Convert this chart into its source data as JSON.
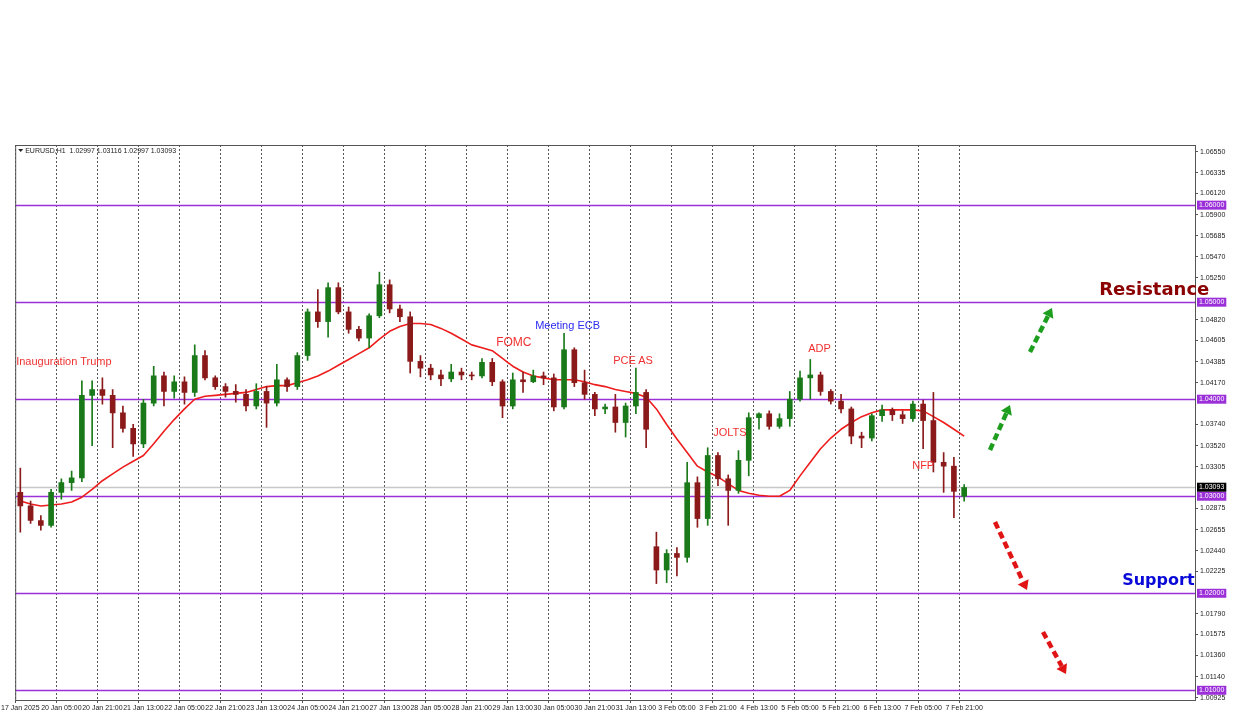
{
  "chart_data": {
    "type": "candlestick",
    "title": "EURUSD,H1  1.02997 1.03116 1.02997 1.03093",
    "categories": [
      "17 Jan 2025",
      null,
      null,
      null,
      "20 Jan 05:00",
      null,
      null,
      null,
      "20 Jan 21:00",
      null,
      null,
      null,
      "21 Jan 13:00",
      null,
      null,
      null,
      "22 Jan 05:00",
      null,
      null,
      null,
      "22 Jan 21:00",
      null,
      null,
      null,
      "23 Jan 13:00",
      null,
      null,
      null,
      "24 Jan 05:00",
      null,
      null,
      null,
      "24 Jan 21:00",
      null,
      null,
      null,
      "27 Jan 13:00",
      null,
      null,
      null,
      "28 Jan 05:00",
      null,
      null,
      null,
      "28 Jan 21:00",
      null,
      null,
      null,
      "29 Jan 13:00",
      null,
      null,
      null,
      "30 Jan 05:00",
      null,
      null,
      null,
      "30 Jan 21:00",
      null,
      null,
      null,
      "31 Jan 13:00",
      null,
      null,
      null,
      "3 Feb 05:00",
      null,
      null,
      null,
      "3 Feb 21:00",
      null,
      null,
      null,
      "4 Feb 13:00",
      null,
      null,
      null,
      "5 Feb 05:00",
      null,
      null,
      null,
      "5 Feb 21:00",
      null,
      null,
      null,
      "6 Feb 13:00",
      null,
      null,
      null,
      "7 Feb 05:00",
      null,
      null,
      null,
      "7 Feb 21:00",
      null,
      null,
      null,
      null,
      null,
      null,
      null,
      null,
      null,
      null,
      null,
      null,
      null,
      null,
      null,
      null,
      null,
      null,
      null,
      null,
      null,
      null
    ],
    "series": [
      {
        "ohlc": [
          [
            1.0304,
            1.0329,
            1.0263,
            1.029
          ],
          [
            1.029,
            1.0295,
            1.0272,
            1.0275
          ],
          [
            1.0275,
            1.028,
            1.0265,
            1.027
          ],
          [
            1.027,
            1.0307,
            1.0268,
            1.0304
          ],
          [
            1.0304,
            1.0318,
            1.0297,
            1.0314
          ],
          [
            1.0314,
            1.0326,
            1.0306,
            1.0319
          ],
          [
            1.0319,
            1.0419,
            1.0315,
            1.0404
          ],
          [
            1.0404,
            1.0419,
            1.0352,
            1.041
          ],
          [
            1.041,
            1.0422,
            1.0395,
            1.0404
          ],
          [
            1.0404,
            1.041,
            1.035,
            1.0386
          ],
          [
            1.0386,
            1.0393,
            1.0366,
            1.037
          ],
          [
            1.037,
            1.0374,
            1.0341,
            1.0354
          ],
          [
            1.0354,
            1.04,
            1.035,
            1.0396
          ],
          [
            1.0396,
            1.0434,
            1.0393,
            1.0424
          ],
          [
            1.0424,
            1.0428,
            1.0393,
            1.0408
          ],
          [
            1.0408,
            1.0424,
            1.0401,
            1.0418
          ],
          [
            1.0418,
            1.0423,
            1.0395,
            1.0407
          ],
          [
            1.0407,
            1.0456,
            1.0403,
            1.0445
          ],
          [
            1.0445,
            1.045,
            1.042,
            1.0422
          ],
          [
            1.0422,
            1.0424,
            1.041,
            1.0413
          ],
          [
            1.0413,
            1.0416,
            1.0402,
            1.0408
          ],
          [
            1.0408,
            1.0415,
            1.0397,
            1.0405
          ],
          [
            1.0405,
            1.041,
            1.0388,
            1.0393
          ],
          [
            1.0393,
            1.0416,
            1.039,
            1.0408
          ],
          [
            1.0408,
            1.0413,
            1.0371,
            1.0396
          ],
          [
            1.0396,
            1.0436,
            1.0393,
            1.042
          ],
          [
            1.042,
            1.0422,
            1.0408,
            1.0413
          ],
          [
            1.0413,
            1.0448,
            1.041,
            1.0445
          ],
          [
            1.0445,
            1.0493,
            1.044,
            1.049
          ],
          [
            1.049,
            1.0513,
            1.0474,
            1.048
          ],
          [
            1.048,
            1.052,
            1.0464,
            1.0515
          ],
          [
            1.0515,
            1.052,
            1.0488,
            1.049
          ],
          [
            1.049,
            1.0495,
            1.0468,
            1.0472
          ],
          [
            1.0472,
            1.0475,
            1.046,
            1.0463
          ],
          [
            1.0463,
            1.0488,
            1.0453,
            1.0486
          ],
          [
            1.0486,
            1.0531,
            1.0484,
            1.0518
          ],
          [
            1.0518,
            1.0523,
            1.0489,
            1.0493
          ],
          [
            1.0493,
            1.0497,
            1.048,
            1.0485
          ],
          [
            1.0485,
            1.049,
            1.0427,
            1.0439
          ],
          [
            1.0439,
            1.0445,
            1.0423,
            1.0432
          ],
          [
            1.0432,
            1.0436,
            1.042,
            1.0425
          ],
          [
            1.0425,
            1.043,
            1.0414,
            1.0421
          ],
          [
            1.0421,
            1.0436,
            1.0418,
            1.0428
          ],
          [
            1.0428,
            1.0432,
            1.042,
            1.0425
          ],
          [
            1.0425,
            1.0428,
            1.042,
            1.0424
          ],
          [
            1.0424,
            1.0442,
            1.0422,
            1.0438
          ],
          [
            1.0438,
            1.0442,
            1.0414,
            1.0418
          ],
          [
            1.0418,
            1.042,
            1.0381,
            1.0393
          ],
          [
            1.0393,
            1.0427,
            1.039,
            1.042
          ],
          [
            1.042,
            1.0428,
            1.0407,
            1.0418
          ],
          [
            1.0418,
            1.043,
            1.0417,
            1.0424
          ],
          [
            1.0424,
            1.0428,
            1.0415,
            1.0422
          ],
          [
            1.0422,
            1.0426,
            1.0388,
            1.0392
          ],
          [
            1.0392,
            1.0468,
            1.039,
            1.0451
          ],
          [
            1.0451,
            1.0453,
            1.0413,
            1.0417
          ],
          [
            1.0417,
            1.043,
            1.04,
            1.0405
          ],
          [
            1.0405,
            1.0407,
            1.0383,
            1.039
          ],
          [
            1.039,
            1.0395,
            1.0385,
            1.0392
          ],
          [
            1.0392,
            1.0405,
            1.0366,
            1.0376
          ],
          [
            1.0376,
            1.0396,
            1.0361,
            1.0393
          ],
          [
            1.0393,
            1.0432,
            1.0385,
            1.0407
          ],
          [
            1.0407,
            1.041,
            1.035,
            1.0369
          ],
          [
            1.0248,
            1.0263,
            1.021,
            1.0224
          ],
          [
            1.0224,
            1.0245,
            1.0211,
            1.0241
          ],
          [
            1.0241,
            1.0247,
            1.0218,
            1.0237
          ],
          [
            1.0237,
            1.0335,
            1.0232,
            1.0314
          ],
          [
            1.0314,
            1.032,
            1.0268,
            1.0277
          ],
          [
            1.0277,
            1.035,
            1.027,
            1.0342
          ],
          [
            1.0342,
            1.0345,
            1.0311,
            1.0318
          ],
          [
            1.0318,
            1.0322,
            1.027,
            1.0306
          ],
          [
            1.0306,
            1.0347,
            1.0303,
            1.0337
          ],
          [
            1.0337,
            1.0386,
            1.0321,
            1.0381
          ],
          [
            1.0381,
            1.0386,
            1.0369,
            1.0385
          ],
          [
            1.0385,
            1.0388,
            1.0369,
            1.0372
          ],
          [
            1.0372,
            1.0385,
            1.037,
            1.038
          ],
          [
            1.038,
            1.0408,
            1.0372,
            1.04
          ],
          [
            1.04,
            1.0429,
            1.0398,
            1.0422
          ],
          [
            1.0422,
            1.0441,
            1.04,
            1.0425
          ],
          [
            1.0425,
            1.0428,
            1.0404,
            1.0408
          ],
          [
            1.0408,
            1.041,
            1.0395,
            1.0398
          ],
          [
            1.0398,
            1.0405,
            1.0386,
            1.039
          ],
          [
            1.039,
            1.0392,
            1.0354,
            1.0362
          ],
          [
            1.0362,
            1.0366,
            1.035,
            1.036
          ],
          [
            1.036,
            1.0385,
            1.0357,
            1.0383
          ],
          [
            1.0383,
            1.0394,
            1.0377,
            1.0389
          ],
          [
            1.0389,
            1.0391,
            1.0378,
            1.0384
          ],
          [
            1.0384,
            1.0388,
            1.0375,
            1.038
          ],
          [
            1.038,
            1.0398,
            1.0377,
            1.0395
          ],
          [
            1.0395,
            1.0399,
            1.0349,
            1.0378
          ],
          [
            1.0378,
            1.0407,
            1.0325,
            1.0335
          ],
          [
            1.0335,
            1.0345,
            1.0304,
            1.0331
          ],
          [
            1.0331,
            1.034,
            1.0278,
            1.0305
          ],
          [
            1.03,
            1.0312,
            1.0295,
            1.0309
          ],
          null,
          null,
          null,
          null,
          null,
          null,
          null,
          null,
          null,
          null,
          null,
          null,
          null,
          null,
          null,
          null,
          null,
          null,
          null,
          null,
          null,
          null
        ],
        "colors": [
          "#8b1a1a",
          "#8b1a1a",
          "#8b1a1a",
          "#1a7a1a",
          "#1a7a1a",
          "#1a7a1a",
          "#1a7a1a",
          "#1a7a1a",
          "#8b1a1a",
          "#8b1a1a",
          "#8b1a1a",
          "#8b1a1a",
          "#1a7a1a",
          "#1a7a1a",
          "#8b1a1a",
          "#1a7a1a",
          "#8b1a1a",
          "#1a7a1a",
          "#8b1a1a",
          "#8b1a1a",
          "#8b1a1a",
          "#8b1a1a",
          "#8b1a1a",
          "#1a7a1a",
          "#8b1a1a",
          "#1a7a1a",
          "#8b1a1a",
          "#1a7a1a",
          "#1a7a1a",
          "#8b1a1a",
          "#1a7a1a",
          "#8b1a1a",
          "#8b1a1a",
          "#8b1a1a",
          "#1a7a1a",
          "#1a7a1a",
          "#8b1a1a",
          "#8b1a1a",
          "#8b1a1a",
          "#8b1a1a",
          "#8b1a1a",
          "#8b1a1a",
          "#1a7a1a",
          "#8b1a1a",
          "#8b1a1a",
          "#1a7a1a",
          "#8b1a1a",
          "#8b1a1a",
          "#1a7a1a",
          "#8b1a1a",
          "#1a7a1a",
          "#8b1a1a",
          "#8b1a1a",
          "#1a7a1a",
          "#8b1a1a",
          "#8b1a1a",
          "#8b1a1a",
          "#1a7a1a",
          "#8b1a1a",
          "#1a7a1a",
          "#1a7a1a",
          "#8b1a1a",
          "#8b1a1a",
          "#1a7a1a",
          "#8b1a1a",
          "#1a7a1a",
          "#8b1a1a",
          "#1a7a1a",
          "#8b1a1a",
          "#8b1a1a",
          "#1a7a1a",
          "#1a7a1a",
          "#1a7a1a",
          "#8b1a1a",
          "#1a7a1a",
          "#1a7a1a",
          "#1a7a1a",
          "#1a7a1a",
          "#8b1a1a",
          "#8b1a1a",
          "#8b1a1a",
          "#8b1a1a",
          "#8b1a1a",
          "#1a7a1a",
          "#1a7a1a",
          "#8b1a1a",
          "#8b1a1a",
          "#1a7a1a",
          "#8b1a1a",
          "#8b1a1a",
          "#8b1a1a",
          "#8b1a1a",
          "#1a7a1a",
          null,
          null,
          null,
          null,
          null,
          null,
          null,
          null,
          null,
          null,
          null,
          null,
          null,
          null,
          null,
          null,
          null,
          null,
          null,
          null,
          null,
          null
        ]
      },
      {
        "type": "line",
        "color": "#ee1c1c",
        "values": [
          1.0295,
          1.0292,
          1.029,
          1.0291,
          1.0292,
          1.0294,
          1.0299,
          1.0307,
          1.0316,
          1.0323,
          1.033,
          1.0336,
          1.0342,
          1.0354,
          1.0367,
          1.0379,
          1.039,
          1.04,
          1.0403,
          1.0404,
          1.0405,
          1.0406,
          1.0407,
          1.041,
          1.0413,
          1.0414,
          1.0414,
          1.0417,
          1.042,
          1.0424,
          1.0429,
          1.0435,
          1.0441,
          1.0447,
          1.0453,
          1.0462,
          1.047,
          1.0475,
          1.0478,
          1.0478,
          1.0477,
          1.0473,
          1.0468,
          1.0462,
          1.0456,
          1.0453,
          1.045,
          1.0442,
          1.0434,
          1.0428,
          1.0424,
          1.0422,
          1.042,
          1.042,
          1.042,
          1.0418,
          1.0415,
          1.0413,
          1.041,
          1.0408,
          1.0406,
          1.0402,
          1.039,
          1.0374,
          1.0359,
          1.0345,
          1.0331,
          1.0325,
          1.032,
          1.0313,
          1.0306,
          1.0303,
          1.0301,
          1.03,
          1.03,
          1.0306,
          1.0321,
          1.0335,
          1.0349,
          1.036,
          1.0369,
          1.0376,
          1.0382,
          1.0386,
          1.0389,
          1.0389,
          1.0389,
          1.0389,
          1.0388,
          1.0382,
          1.0376,
          1.0369,
          1.0362,
          null,
          null,
          null,
          null,
          null,
          null,
          null,
          null,
          null,
          null,
          null,
          null,
          null,
          null,
          null,
          null,
          null,
          null,
          null,
          null,
          null,
          null
        ]
      }
    ],
    "ylim": [
      1.009,
      1.0662
    ],
    "yticks": [
      {
        "value": 1.0655,
        "label": "1.06550"
      },
      {
        "value": 1.06335,
        "label": "1.06335"
      },
      {
        "value": 1.0612,
        "label": "1.06120"
      },
      {
        "value": 1.059,
        "label": "1.05900"
      },
      {
        "value": 1.05685,
        "label": "1.05685"
      },
      {
        "value": 1.0547,
        "label": "1.05470"
      },
      {
        "value": 1.0525,
        "label": "1.05250"
      },
      {
        "value": 1.0482,
        "label": "1.04820"
      },
      {
        "value": 1.04605,
        "label": "1.04605"
      },
      {
        "value": 1.04385,
        "label": "1.04385"
      },
      {
        "value": 1.0417,
        "label": "1.04170"
      },
      {
        "value": 1.0374,
        "label": "1.03740"
      },
      {
        "value": 1.0352,
        "label": "1.03520"
      },
      {
        "value": 1.03305,
        "label": "1.03305"
      },
      {
        "value": 1.02875,
        "label": "1.02875"
      },
      {
        "value": 1.02655,
        "label": "1.02655"
      },
      {
        "value": 1.0244,
        "label": "1.02440"
      },
      {
        "value": 1.02225,
        "label": "1.02225"
      },
      {
        "value": 1.0179,
        "label": "1.01790"
      },
      {
        "value": 1.01575,
        "label": "1.01575"
      },
      {
        "value": 1.0136,
        "label": "1.01360"
      },
      {
        "value": 1.0114,
        "label": "1.01140"
      },
      {
        "value": 1.00925,
        "label": "1.00925"
      }
    ],
    "ref_lines": [
      {
        "axis": "y",
        "value": 1.06,
        "label": "1.06000",
        "color": "#9b30d9"
      },
      {
        "axis": "y",
        "value": 1.05,
        "label": "1.05000",
        "color": "#9b30d9"
      },
      {
        "axis": "y",
        "value": 1.04,
        "label": "1.04000",
        "color": "#9b30d9"
      },
      {
        "axis": "y",
        "value": 1.03,
        "label": "1.03000",
        "color": "#9b30d9"
      },
      {
        "axis": "y",
        "value": 1.02,
        "label": "1.02000",
        "color": "#9b30d9"
      },
      {
        "axis": "y",
        "value": 1.01,
        "label": "1.01000",
        "color": "#9b30d9"
      },
      {
        "axis": "y",
        "value": 1.03093,
        "label": "1.03093",
        "color": "#c8c8c8"
      }
    ],
    "annotations": [
      "Inauguration Trump",
      "FOMC",
      "Meeting ECB",
      "PCE AS",
      "JOLTS",
      "ADP",
      "NFP",
      "Resistance",
      "Support"
    ],
    "grid": "x"
  }
}
